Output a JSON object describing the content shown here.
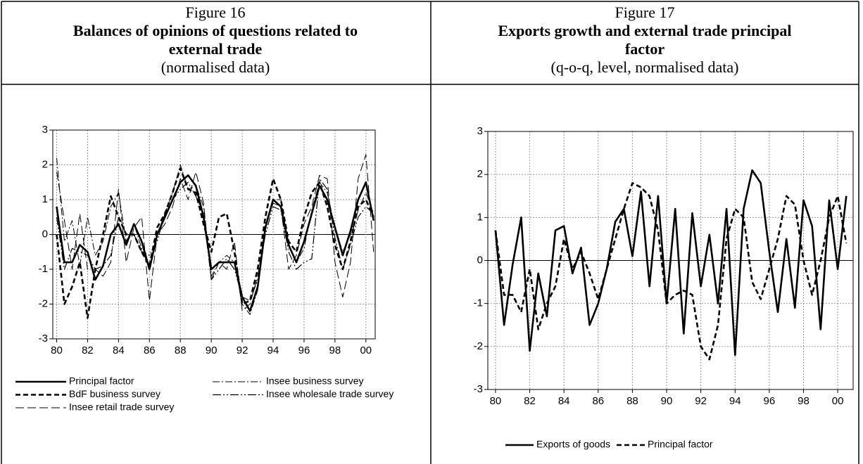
{
  "chart_data": [
    {
      "type": "line",
      "figure": "Figure 16",
      "title_lines": [
        "Balances of opinions of questions related to",
        "external trade"
      ],
      "subtitle": "(normalised data)",
      "x": [
        1980,
        1980.5,
        1981,
        1981.5,
        1982,
        1982.5,
        1983,
        1983.5,
        1984,
        1984.5,
        1985,
        1985.5,
        1986,
        1986.5,
        1987,
        1987.5,
        1988,
        1988.5,
        1989,
        1989.5,
        1990,
        1990.5,
        1991,
        1991.5,
        1992,
        1992.5,
        1993,
        1993.5,
        1994,
        1994.5,
        1995,
        1995.5,
        1996,
        1996.5,
        1997,
        1997.5,
        1998,
        1998.5,
        1999,
        1999.5,
        2000,
        2000.5
      ],
      "xlim": [
        1979.75,
        2000.6
      ],
      "xticks": [
        {
          "value": 1980,
          "label": "80"
        },
        {
          "value": 1982,
          "label": "82"
        },
        {
          "value": 1984,
          "label": "84"
        },
        {
          "value": 1986,
          "label": "86"
        },
        {
          "value": 1988,
          "label": "88"
        },
        {
          "value": 1990,
          "label": "90"
        },
        {
          "value": 1992,
          "label": "92"
        },
        {
          "value": 1994,
          "label": "94"
        },
        {
          "value": 1996,
          "label": "96"
        },
        {
          "value": 1998,
          "label": "98"
        },
        {
          "value": 2000,
          "label": "00"
        }
      ],
      "ylim": [
        -3,
        3
      ],
      "yticks": [
        -3,
        -2,
        -1,
        0,
        1,
        2,
        3
      ],
      "grid": true,
      "legend": "bottom",
      "series": [
        {
          "name": "Principal factor",
          "color": "#000000",
          "line_style": "solid-bold",
          "values": [
            0.8,
            -0.8,
            -0.8,
            -0.3,
            -0.5,
            -1.3,
            -0.9,
            0.0,
            0.3,
            -0.3,
            0.3,
            -0.2,
            -1.0,
            0.0,
            0.5,
            1.0,
            1.5,
            1.7,
            1.4,
            0.5,
            -1.0,
            -0.8,
            -0.8,
            -0.8,
            -1.8,
            -2.2,
            -1.5,
            0.2,
            1.0,
            0.8,
            -0.3,
            -0.8,
            -0.2,
            0.6,
            1.4,
            1.0,
            0.2,
            -0.6,
            0.1,
            1.0,
            1.5,
            0.4
          ]
        },
        {
          "name": "Insee business survey",
          "color": "#000000",
          "line_style": "dash-dot",
          "values": [
            2.2,
            -0.2,
            0.4,
            -0.9,
            0.5,
            -0.6,
            -0.2,
            0.8,
            1.2,
            -0.2,
            0.3,
            -0.4,
            -1.0,
            0.0,
            0.6,
            1.2,
            2.0,
            1.3,
            1.4,
            0.8,
            -1.2,
            -0.8,
            -0.6,
            -0.8,
            -2.0,
            -2.3,
            -1.6,
            0.3,
            1.0,
            1.0,
            -0.3,
            -0.8,
            -0.4,
            0.7,
            1.5,
            1.2,
            0.2,
            -0.5,
            0.0,
            0.7,
            1.2,
            0.6
          ]
        },
        {
          "name": "BdF business survey",
          "color": "#000000",
          "line_style": "dashed-bold",
          "values": [
            0.0,
            -2.0,
            -1.5,
            -0.8,
            -2.4,
            -1.0,
            0.0,
            1.1,
            0.5,
            0.0,
            0.0,
            -0.5,
            -0.9,
            0.2,
            0.6,
            1.2,
            1.9,
            1.3,
            1.2,
            0.3,
            -0.5,
            0.5,
            0.6,
            -0.5,
            -2.0,
            -1.9,
            -1.0,
            0.5,
            1.6,
            1.0,
            -0.2,
            -0.5,
            0.5,
            1.2,
            1.5,
            0.8,
            -0.3,
            -1.0,
            -0.2,
            0.8,
            1.0,
            0.5
          ]
        },
        {
          "name": "Insee wholesale trade survey",
          "color": "#000000",
          "line_style": "dash-dot-dot",
          "values": [
            0.5,
            -1.0,
            -0.4,
            -0.5,
            -0.6,
            -1.0,
            -0.9,
            -0.6,
            0.5,
            0.0,
            0.0,
            -0.5,
            -0.6,
            -0.2,
            0.6,
            1.0,
            1.3,
            1.5,
            1.1,
            0.6,
            -1.3,
            -1.0,
            -0.7,
            -1.0,
            -1.8,
            -1.9,
            -1.3,
            0.0,
            0.8,
            0.7,
            -0.5,
            -1.0,
            -0.8,
            -0.7,
            1.6,
            1.3,
            -0.1,
            -1.0,
            -0.3,
            0.5,
            0.8,
            0.6
          ]
        },
        {
          "name": "Insee retail trade survey",
          "color": "#000000",
          "line_style": "long-dash",
          "values": [
            1.8,
            0.4,
            -1.0,
            0.6,
            -1.0,
            -1.0,
            -1.2,
            -0.8,
            1.3,
            -0.8,
            0.2,
            0.5,
            -1.9,
            0.0,
            0.3,
            0.8,
            1.6,
            1.0,
            1.8,
            0.9,
            -1.3,
            -0.8,
            -1.0,
            -0.2,
            -2.2,
            -2.0,
            -1.2,
            0.2,
            0.9,
            0.8,
            -1.0,
            -0.6,
            0.3,
            0.8,
            1.7,
            1.6,
            -0.8,
            -1.8,
            -0.8,
            1.6,
            2.3,
            -0.5
          ]
        }
      ]
    },
    {
      "type": "line",
      "figure": "Figure 17",
      "title_lines": [
        "Exports growth and external trade principal",
        "factor"
      ],
      "subtitle": "(q-o-q, level, normalised data)",
      "x": [
        1980,
        1980.5,
        1981,
        1981.5,
        1982,
        1982.5,
        1983,
        1983.5,
        1984,
        1984.5,
        1985,
        1985.5,
        1986,
        1986.5,
        1987,
        1987.5,
        1988,
        1988.5,
        1989,
        1989.5,
        1990,
        1990.5,
        1991,
        1991.5,
        1992,
        1992.5,
        1993,
        1993.5,
        1994,
        1994.5,
        1995,
        1995.5,
        1996,
        1996.5,
        1997,
        1997.5,
        1998,
        1998.5,
        1999,
        1999.5,
        2000,
        2000.5
      ],
      "xlim": [
        1979.55,
        2000.9
      ],
      "xticks": [
        {
          "value": 1980,
          "label": "80"
        },
        {
          "value": 1982,
          "label": "82"
        },
        {
          "value": 1984,
          "label": "84"
        },
        {
          "value": 1986,
          "label": "86"
        },
        {
          "value": 1988,
          "label": "88"
        },
        {
          "value": 1990,
          "label": "90"
        },
        {
          "value": 1992,
          "label": "92"
        },
        {
          "value": 1994,
          "label": "94"
        },
        {
          "value": 1996,
          "label": "96"
        },
        {
          "value": 1998,
          "label": "98"
        },
        {
          "value": 2000,
          "label": "00"
        }
      ],
      "ylim": [
        -3,
        3
      ],
      "yticks": [
        -3,
        -2,
        -1,
        0,
        1,
        2,
        3
      ],
      "grid": true,
      "legend": "bottom",
      "series": [
        {
          "name": "Exports of goods",
          "color": "#000000",
          "line_style": "solid-bold",
          "values": [
            0.7,
            -1.5,
            -0.1,
            1.0,
            -2.1,
            -0.3,
            -1.3,
            0.7,
            0.8,
            -0.3,
            0.3,
            -1.5,
            -1.0,
            -0.2,
            0.9,
            1.2,
            0.1,
            1.6,
            -0.6,
            1.5,
            -1.0,
            1.2,
            -1.7,
            1.1,
            -0.6,
            0.6,
            -1.0,
            1.2,
            -2.2,
            1.2,
            2.1,
            1.8,
            0.2,
            -1.2,
            0.5,
            -1.1,
            1.4,
            0.8,
            -1.6,
            1.4,
            -0.2,
            1.5
          ]
        },
        {
          "name": "Principal factor",
          "color": "#000000",
          "line_style": "dashed-bold",
          "values": [
            0.7,
            -0.8,
            -0.8,
            -1.2,
            -0.2,
            -1.6,
            -1.0,
            -0.6,
            0.5,
            -0.2,
            0.2,
            -0.3,
            -0.9,
            -0.2,
            0.5,
            1.2,
            1.8,
            1.7,
            1.5,
            0.7,
            -1.0,
            -0.8,
            -0.7,
            -0.8,
            -2.0,
            -2.3,
            -1.5,
            0.5,
            1.2,
            1.0,
            -0.5,
            -0.9,
            -0.2,
            0.5,
            1.5,
            1.3,
            0.0,
            -0.8,
            0.0,
            1.0,
            1.5,
            0.4
          ]
        }
      ]
    }
  ]
}
